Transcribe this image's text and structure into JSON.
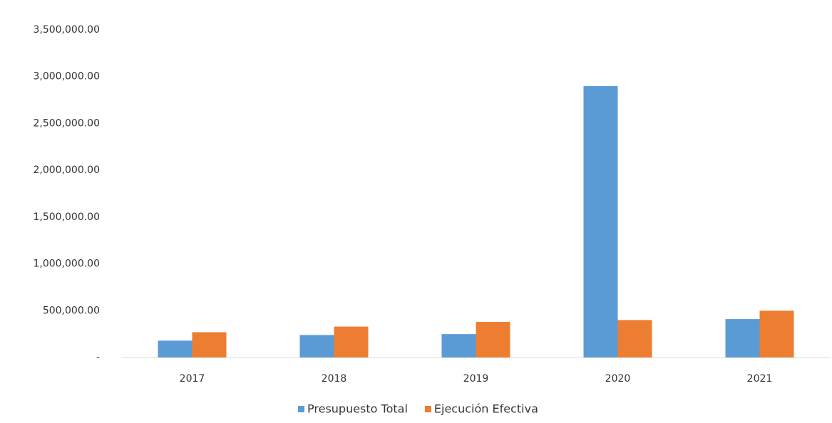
{
  "chart_data": {
    "type": "bar",
    "categories": [
      "2017",
      "2018",
      "2019",
      "2020",
      "2021"
    ],
    "series": [
      {
        "name": "Presupuesto Total",
        "color": "#5b9bd5",
        "values": [
          180000,
          240000,
          250000,
          2900000,
          410000
        ]
      },
      {
        "name": "Ejecución Efectiva",
        "color": "#ed7d31",
        "values": [
          270000,
          330000,
          380000,
          400000,
          500000
        ]
      }
    ],
    "ylim": [
      0,
      3500000
    ],
    "yticks": [
      {
        "value": 0,
        "label": "-"
      },
      {
        "value": 500000,
        "label": "500,000.00"
      },
      {
        "value": 1000000,
        "label": "1,000,000.00"
      },
      {
        "value": 1500000,
        "label": "1,500,000.00"
      },
      {
        "value": 2000000,
        "label": "2,000,000.00"
      },
      {
        "value": 2500000,
        "label": "2,500,000.00"
      },
      {
        "value": 3000000,
        "label": "3,000,000.00"
      },
      {
        "value": 3500000,
        "label": "3,500,000.00"
      }
    ],
    "grid": false,
    "legend": "bottom"
  }
}
